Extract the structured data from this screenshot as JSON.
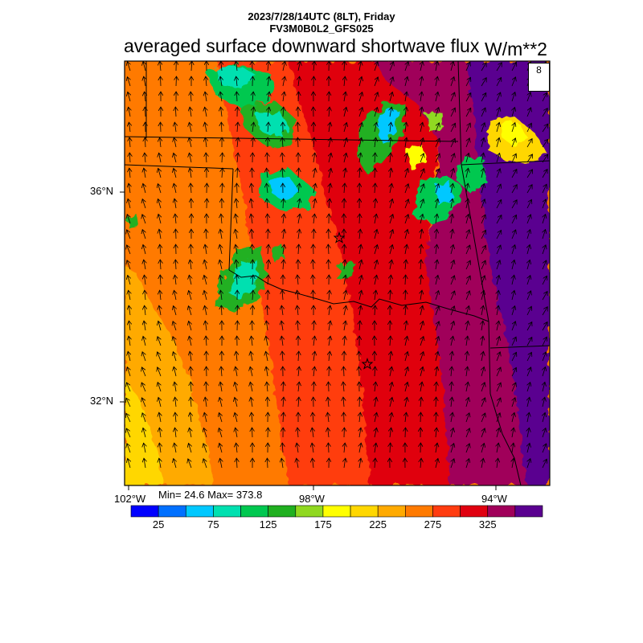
{
  "header": {
    "line1": "2023/7/28/14UTC (8LT), Friday",
    "line2": "FV3M0B0L2_GFS025",
    "title": "averaged surface downward shortwave flux",
    "units": "W/m**2"
  },
  "axes": {
    "lat_labels": [
      "36°N",
      "32°N"
    ],
    "lon_labels": [
      "102°W",
      "98°W",
      "94°W"
    ]
  },
  "stats": {
    "min": "24.6",
    "max": "373.8",
    "text": "Min= 24.6 Max= 373.8"
  },
  "reference_vector": {
    "value": "8"
  },
  "colorbar": {
    "colors": [
      "#0000ff",
      "#0070ff",
      "#00c8ff",
      "#00e0b0",
      "#00c850",
      "#20b020",
      "#90d820",
      "#ffff00",
      "#ffd700",
      "#ffaa00",
      "#ff7a00",
      "#ff3c10",
      "#e00010",
      "#a0005a",
      "#5a0090"
    ],
    "tick_labels": [
      "25",
      "75",
      "125",
      "175",
      "225",
      "275",
      "325"
    ]
  },
  "markers": [
    "star",
    "star"
  ]
}
